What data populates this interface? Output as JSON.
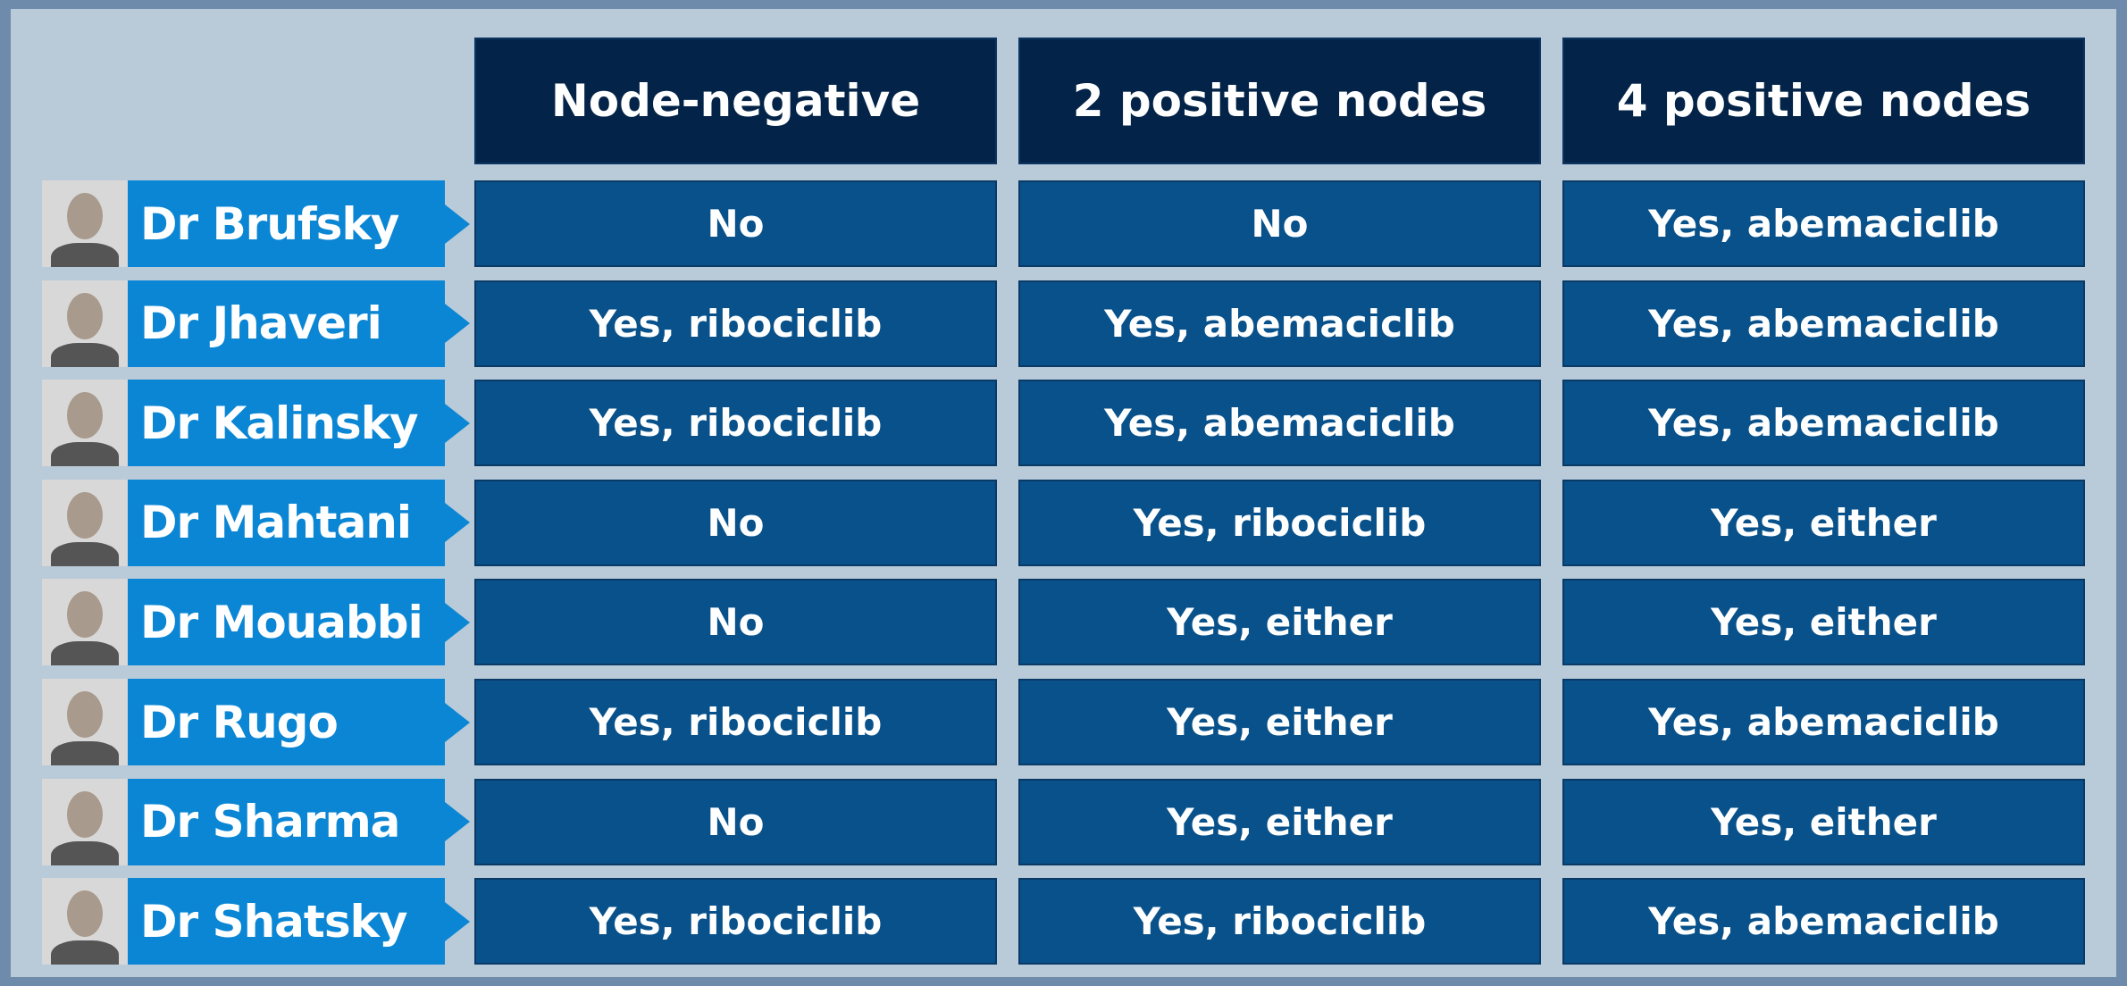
{
  "table": {
    "headers": [
      "Node-negative",
      "2 positive nodes",
      "4 positive nodes"
    ],
    "rows": [
      {
        "name": "Dr Brufsky",
        "cells": [
          "No",
          "No",
          "Yes, abemaciclib"
        ]
      },
      {
        "name": "Dr Jhaveri",
        "cells": [
          "Yes, ribociclib",
          "Yes, abemaciclib",
          "Yes, abemaciclib"
        ]
      },
      {
        "name": "Dr Kalinsky",
        "cells": [
          "Yes, ribociclib",
          "Yes, abemaciclib",
          "Yes, abemaciclib"
        ]
      },
      {
        "name": "Dr Mahtani",
        "cells": [
          "No",
          "Yes, ribociclib",
          "Yes, either"
        ]
      },
      {
        "name": "Dr Mouabbi",
        "cells": [
          "No",
          "Yes, either",
          "Yes, either"
        ]
      },
      {
        "name": "Dr Rugo",
        "cells": [
          "Yes, ribociclib",
          "Yes, either",
          "Yes, abemaciclib"
        ]
      },
      {
        "name": "Dr Sharma",
        "cells": [
          "No",
          "Yes, either",
          "Yes, either"
        ]
      },
      {
        "name": "Dr Shatsky",
        "cells": [
          "Yes, ribociclib",
          "Yes, ribociclib",
          "Yes, abemaciclib"
        ]
      }
    ]
  }
}
